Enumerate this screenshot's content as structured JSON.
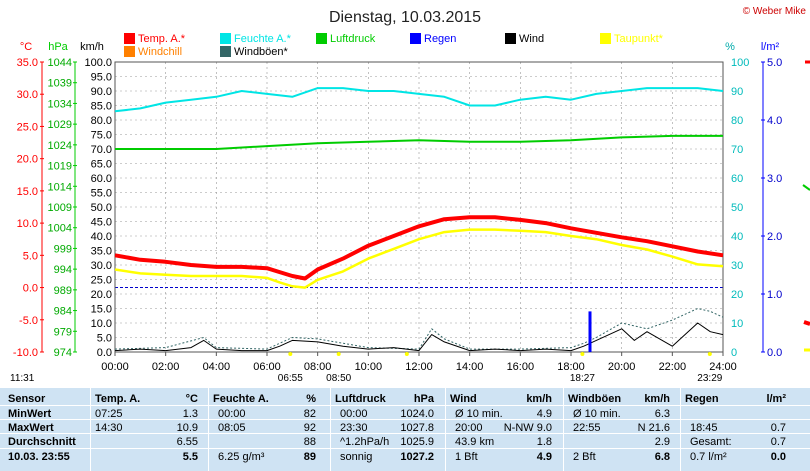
{
  "header": {
    "title": "Dienstag, 10.03.2015",
    "copyright": "© Weber Mike",
    "colors": {
      "red": "#ff0000",
      "green": "#00cc00",
      "blue": "#0000ff",
      "cyan": "#00e5e5",
      "yellow": "#ffff00"
    }
  },
  "chart_data": {
    "type": "line",
    "legend": [
      {
        "label": "Temp. A.*",
        "color": "#ff0000"
      },
      {
        "label": "Feuchte A.*",
        "color": "#00e5e5"
      },
      {
        "label": "Luftdruck",
        "color": "#00cc00"
      },
      {
        "label": "Regen",
        "color": "#0000ff"
      },
      {
        "label": "Wind",
        "color": "#000000"
      },
      {
        "label": "Taupunkt*",
        "color": "#ffff00"
      },
      {
        "label": "Windchill",
        "color": "#ff8000"
      },
      {
        "label": "Windböen*",
        "color": "#336666"
      }
    ],
    "axis_units": {
      "temp": "°C",
      "pressure": "hPa",
      "wind": "km/h",
      "humidity": "%",
      "rain": "l/m²"
    },
    "temp_ticks": [
      "35.0",
      "30.0",
      "25.0",
      "20.0",
      "15.0",
      "10.0",
      "5.0",
      "0.0",
      "-5.0",
      "-10.0"
    ],
    "pressure_ticks": [
      "1044",
      "1039",
      "1034",
      "1029",
      "1024",
      "1019",
      "1014",
      "1009",
      "1004",
      "999",
      "994",
      "989",
      "984",
      "979",
      "974"
    ],
    "wind_ticks": [
      "100.0",
      "95.0",
      "90.0",
      "85.0",
      "80.0",
      "75.0",
      "70.0",
      "65.0",
      "60.0",
      "55.0",
      "50.0",
      "45.0",
      "40.0",
      "35.0",
      "30.0",
      "25.0",
      "20.0",
      "15.0",
      "10.0",
      "5.0",
      "0.0"
    ],
    "humidity_ticks": [
      "100",
      "90",
      "80",
      "70",
      "60",
      "50",
      "40",
      "30",
      "20",
      "10",
      "0"
    ],
    "rain_ticks": [
      "5.0",
      "4.0",
      "3.0",
      "2.0",
      "1.0",
      "0.0"
    ],
    "x_ticks": [
      "00:00",
      "02:00",
      "04:00",
      "06:00",
      "08:00",
      "10:00",
      "12:00",
      "14:00",
      "16:00",
      "18:00",
      "20:00",
      "22:00",
      "24:00"
    ],
    "time_markers": [
      {
        "label": "11:31",
        "h": 11.52
      },
      {
        "label": "06:55",
        "h": 6.92
      },
      {
        "label": "08:50",
        "h": 8.83
      },
      {
        "label": "18:27",
        "h": 18.45
      },
      {
        "label": "23:29",
        "h": 23.48
      }
    ],
    "ylim_temp": [
      -10,
      35
    ],
    "ylim_humidity": [
      0,
      100
    ],
    "ylim_wind": [
      0,
      100
    ],
    "series": [
      {
        "name": "Temp. A.*",
        "unit": "°C",
        "color": "#ff0000",
        "x": [
          0,
          1,
          2,
          3,
          4,
          5,
          6,
          6.5,
          7,
          7.5,
          8,
          9,
          10,
          11,
          12,
          13,
          14,
          15,
          16,
          17,
          18,
          19,
          20,
          21,
          22,
          23,
          24
        ],
        "y": [
          5.0,
          4.3,
          4.0,
          3.5,
          3.2,
          3.2,
          3.0,
          2.4,
          1.8,
          1.4,
          2.8,
          4.5,
          6.5,
          8.0,
          9.5,
          10.6,
          10.9,
          10.9,
          10.5,
          10.0,
          9.2,
          8.5,
          7.8,
          7.2,
          6.4,
          5.6,
          5.0
        ]
      },
      {
        "name": "Taupunkt*",
        "unit": "°C",
        "color": "#ffff00",
        "x": [
          0,
          1,
          2,
          3,
          4,
          5,
          6,
          6.5,
          7,
          7.5,
          8,
          9,
          10,
          11,
          12,
          13,
          14,
          15,
          16,
          17,
          18,
          19,
          20,
          21,
          22,
          23,
          24
        ],
        "y": [
          2.8,
          2.2,
          2.0,
          1.8,
          1.8,
          1.8,
          1.5,
          0.8,
          0.2,
          0.0,
          1.2,
          2.5,
          4.5,
          6.0,
          7.5,
          8.6,
          9.0,
          9.0,
          8.8,
          8.6,
          8.0,
          7.5,
          6.6,
          5.9,
          4.8,
          3.6,
          3.3
        ]
      },
      {
        "name": "Feuchte A.*",
        "unit": "%",
        "color": "#00e5e5",
        "x": [
          0,
          1,
          2,
          3,
          4,
          5,
          6,
          7,
          8,
          9,
          10,
          11,
          12,
          13,
          14,
          15,
          16,
          17,
          18,
          19,
          20,
          21,
          22,
          23,
          24
        ],
        "y": [
          83,
          84,
          86,
          87,
          88,
          90,
          89,
          88,
          91,
          91,
          90,
          90,
          89,
          88,
          85,
          85,
          87,
          88,
          87,
          89,
          90,
          91,
          91,
          91,
          90
        ]
      },
      {
        "name": "Luftdruck",
        "unit": "%",
        "color": "#00cc00",
        "x": [
          0,
          2,
          4,
          6,
          8,
          10,
          12,
          14,
          16,
          18,
          20,
          22,
          24
        ],
        "y": [
          70,
          70,
          70,
          71,
          72,
          72.5,
          73,
          72.5,
          72.5,
          73,
          74,
          74.5,
          74.5
        ]
      },
      {
        "name": "Wind",
        "unit": "km/h",
        "color": "#000000",
        "x": [
          0,
          1,
          2,
          3,
          3.5,
          4,
          5,
          6,
          6.5,
          7,
          8,
          9,
          10,
          11,
          12,
          12.5,
          13,
          14,
          15,
          16,
          17,
          18,
          18.5,
          19,
          20,
          20.5,
          21,
          22,
          23,
          23.5,
          24
        ],
        "y": [
          0.5,
          1.0,
          0.5,
          1.5,
          4.0,
          1.0,
          0.5,
          0.5,
          2.0,
          4.0,
          3.5,
          2.0,
          1.0,
          1.5,
          0.5,
          6.0,
          3.5,
          0.5,
          1.0,
          0.5,
          1.0,
          0.5,
          2.0,
          4.0,
          8.0,
          4.0,
          7.0,
          2.0,
          10.0,
          7.0,
          6.0
        ]
      },
      {
        "name": "Windböen*",
        "unit": "km/h",
        "color": "#336666",
        "x": [
          0,
          2,
          3.5,
          4,
          6,
          7,
          8,
          10,
          12,
          12.5,
          13,
          14,
          16,
          18,
          18.5,
          19,
          20,
          21,
          22,
          22.5,
          23,
          23.5,
          24
        ],
        "y": [
          1.0,
          1.5,
          5.0,
          1.5,
          1.0,
          5.0,
          4.5,
          1.5,
          1.0,
          8.0,
          4.5,
          1.0,
          1.0,
          1.5,
          3.0,
          5.0,
          10.0,
          8.0,
          11.0,
          13.0,
          15.0,
          14.0,
          12.0
        ]
      },
      {
        "name": "Regen",
        "unit": "l/m²",
        "color": "#0000ff",
        "x": [
          18.75
        ],
        "y": [
          0.7
        ]
      }
    ]
  },
  "table": {
    "columns": [
      {
        "title": "Sensor",
        "unit": ""
      },
      {
        "title": "Temp. A.",
        "unit": "°C"
      },
      {
        "title": "Feuchte A.",
        "unit": "%"
      },
      {
        "title": "Luftdruck",
        "unit": "hPa"
      },
      {
        "title": "Wind",
        "unit": "km/h"
      },
      {
        "title": "Windböen",
        "unit": "km/h"
      },
      {
        "title": "Regen",
        "unit": "l/m²"
      }
    ],
    "rows": [
      {
        "label": "MinWert",
        "cells": [
          [
            "07:25",
            "1.3"
          ],
          [
            "00:00",
            "82"
          ],
          [
            "00:00",
            "1024.0"
          ],
          [
            "Ø 10 min.",
            "4.9"
          ],
          [
            "Ø 10 min.",
            "6.3"
          ],
          [
            "",
            ""
          ]
        ]
      },
      {
        "label": "MaxWert",
        "cells": [
          [
            "14:30",
            "10.9"
          ],
          [
            "08:05",
            "92"
          ],
          [
            "23:30",
            "1027.8"
          ],
          [
            "20:00",
            "N-NW 9.0"
          ],
          [
            "22:55",
            "N 21.6"
          ],
          [
            "18:45",
            "0.7"
          ]
        ]
      },
      {
        "label": "Durchschnitt",
        "cells": [
          [
            "",
            "6.55"
          ],
          [
            "",
            "88"
          ],
          [
            "^1.2hPa/h",
            "1025.9"
          ],
          [
            "43.9 km",
            "1.8"
          ],
          [
            "",
            "2.9"
          ],
          [
            "Gesamt:",
            "0.7"
          ]
        ]
      },
      {
        "label": "10.03. 23:55",
        "cells": [
          [
            "",
            "5.5"
          ],
          [
            "6.25 g/m³",
            "89"
          ],
          [
            "sonnig",
            "1027.2"
          ],
          [
            "1 Bft",
            "4.9"
          ],
          [
            "2 Bft",
            "6.8"
          ],
          [
            "0.7 l/m²",
            "0.0"
          ]
        ]
      }
    ]
  }
}
